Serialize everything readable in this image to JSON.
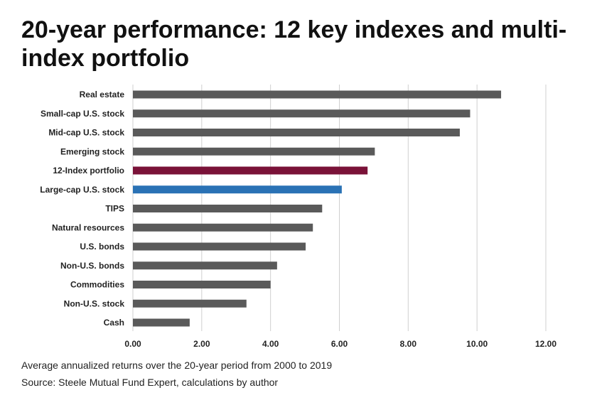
{
  "chart_data": {
    "type": "bar",
    "orientation": "horizontal",
    "title": "20-year performance: 12 key indexes and multi-index portfolio",
    "categories": [
      "Real estate",
      "Small-cap  U.S. stock",
      "Mid-cap U.S. stock",
      "Emerging stock",
      "12-Index portfolio",
      "Large-cap U.S. stock",
      "TIPS",
      "Natural resources",
      "U.S. bonds",
      "Non-U.S. bonds",
      "Commodities",
      "Non-U.S. stock",
      "Cash"
    ],
    "values": [
      10.7,
      9.8,
      9.5,
      7.03,
      6.82,
      6.07,
      5.5,
      5.23,
      5.02,
      4.19,
      4.0,
      3.3,
      1.65
    ],
    "bar_colors": [
      "#5a5a5a",
      "#5a5a5a",
      "#5a5a5a",
      "#5a5a5a",
      "#7a1238",
      "#2a72b5",
      "#5a5a5a",
      "#5a5a5a",
      "#5a5a5a",
      "#5a5a5a",
      "#5a5a5a",
      "#5a5a5a",
      "#5a5a5a"
    ],
    "xticks": [
      "0.00",
      "2.00",
      "4.00",
      "6.00",
      "8.00",
      "10.00",
      "12.00"
    ],
    "xlim": [
      0,
      12
    ],
    "xlabel": "",
    "ylabel": "",
    "grid": true
  },
  "footer": {
    "note": "Average annualized returns over the 20-year period from 2000 to 2019",
    "source": "Source: Steele Mutual Fund Expert, calculations by author"
  },
  "colors": {
    "grid": "#cfcfcf",
    "default_bar": "#5a5a5a",
    "highlight_portfolio": "#7a1238",
    "highlight_large_cap": "#2a72b5"
  }
}
